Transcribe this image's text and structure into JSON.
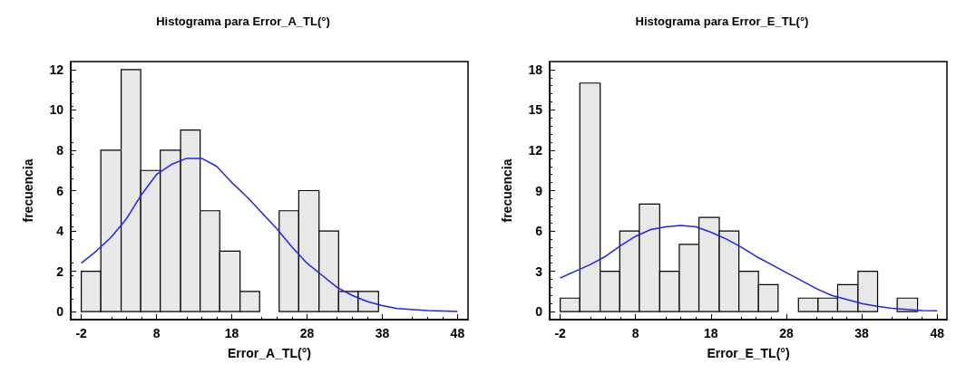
{
  "chart_data": [
    {
      "type": "histogram",
      "title": "Histograma para Error_A_TL(°)",
      "xlabel": "Error_A_TL(°)",
      "ylabel": "frecuencia",
      "color": "#e8e8e8",
      "bins": [
        -2,
        0.6,
        3.3,
        5.9,
        8.5,
        11.2,
        13.8,
        16.4,
        19.1,
        21.7,
        24.3,
        26.9,
        29.6,
        32.2,
        34.8,
        37.5
      ],
      "values": [
        2,
        8,
        12,
        7,
        8,
        9,
        5,
        3,
        1,
        0,
        5,
        6,
        4,
        1,
        1
      ],
      "series": [
        {
          "type": "line",
          "color": "#2020ff",
          "x": [
            -2,
            0,
            2,
            4,
            6,
            8,
            10,
            12,
            14,
            16,
            18,
            20,
            22,
            24,
            26,
            28,
            30,
            32,
            34,
            36,
            38,
            40,
            44,
            48
          ],
          "values": [
            2.4,
            3.0,
            3.7,
            4.6,
            5.8,
            6.8,
            7.3,
            7.6,
            7.6,
            7.2,
            6.4,
            5.7,
            4.9,
            4.1,
            3.2,
            2.4,
            1.8,
            1.2,
            0.8,
            0.5,
            0.3,
            0.15,
            0.05,
            0
          ]
        }
      ],
      "xlim": [
        -3.4,
        49.4
      ],
      "xticks": [
        -2,
        8,
        18,
        28,
        38,
        48
      ],
      "ylim": [
        -0.4,
        12.4
      ],
      "yticks": [
        0,
        2,
        4,
        6,
        8,
        10,
        12
      ],
      "grid": false
    },
    {
      "type": "histogram",
      "title": "Histograma para Error_E_TL(°)",
      "xlabel": "Error_E_TL(°)",
      "ylabel": "frecuencia",
      "color": "#e8e8e8",
      "bins": [
        -2,
        0.6,
        3.3,
        5.9,
        8.5,
        11.2,
        13.8,
        16.4,
        19.1,
        21.7,
        24.3,
        26.9,
        29.6,
        32.2,
        34.8,
        37.5,
        40.1,
        42.7,
        45.4
      ],
      "values": [
        1,
        17,
        3,
        6,
        8,
        3,
        5,
        7,
        6,
        3,
        2,
        0,
        1,
        1,
        2,
        3,
        0,
        1
      ],
      "series": [
        {
          "type": "line",
          "color": "#2020ff",
          "x": [
            -2,
            0,
            2,
            4,
            6,
            8,
            10,
            12,
            14,
            16,
            18,
            20,
            22,
            24,
            26,
            28,
            30,
            32,
            34,
            36,
            38,
            40,
            42,
            44,
            46,
            48
          ],
          "values": [
            2.5,
            3.0,
            3.5,
            4.1,
            4.9,
            5.6,
            6.1,
            6.3,
            6.4,
            6.3,
            5.9,
            5.4,
            4.8,
            4.1,
            3.5,
            2.9,
            2.3,
            1.7,
            1.2,
            0.9,
            0.6,
            0.4,
            0.25,
            0.15,
            0.08,
            0.05
          ]
        }
      ],
      "xlim": [
        -3.4,
        49.3
      ],
      "xticks": [
        -2,
        8,
        18,
        28,
        38,
        48
      ],
      "ylim": [
        -0.6,
        18.6
      ],
      "yticks": [
        0,
        3,
        6,
        9,
        12,
        15,
        18
      ],
      "grid": false
    }
  ]
}
